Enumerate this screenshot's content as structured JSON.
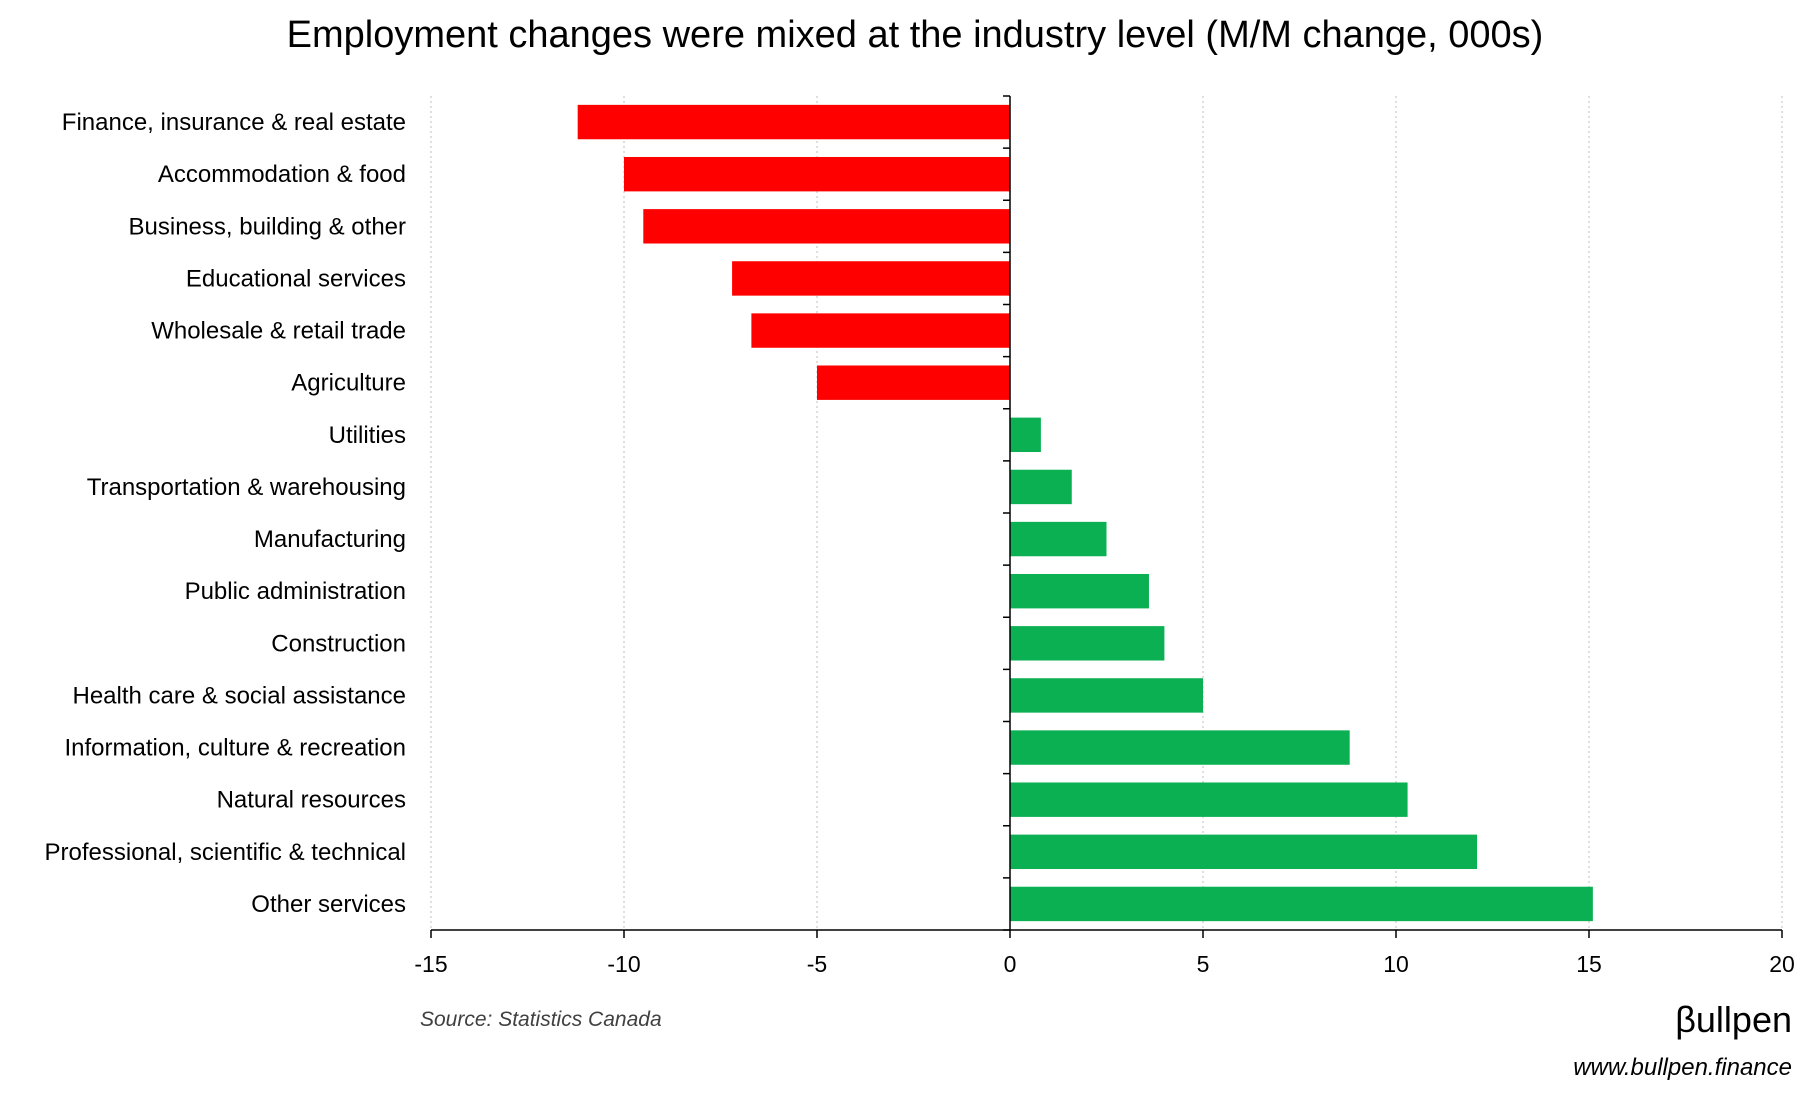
{
  "chart_data": {
    "type": "bar",
    "orientation": "horizontal",
    "title": "Employment changes were mixed at the industry level (M/M change, 000s)",
    "xlabel": "",
    "ylabel": "",
    "xlim": [
      -15,
      20
    ],
    "xticks": [
      -15,
      -10,
      -5,
      0,
      5,
      10,
      15,
      20
    ],
    "xtick_labels": [
      "-15",
      "-10",
      "-5",
      "0",
      "5",
      "10",
      "15",
      "20"
    ],
    "grid": "vertical dotted",
    "legend": "none",
    "categories": [
      "Finance, insurance & real estate",
      "Accommodation & food",
      "Business, building & other",
      "Educational services",
      "Wholesale & retail trade",
      "Agriculture",
      "Utilities",
      "Transportation & warehousing",
      "Manufacturing",
      "Public administration",
      "Construction",
      "Health care & social assistance",
      "Information, culture & recreation",
      "Natural resources",
      "Professional, scientific & technical",
      "Other services"
    ],
    "values": [
      -11.2,
      -10.0,
      -9.5,
      -7.2,
      -6.7,
      -5.0,
      0.8,
      1.6,
      2.5,
      3.6,
      4.0,
      5.0,
      8.8,
      10.3,
      12.1,
      15.1
    ],
    "colors": {
      "negative": "#ff0000",
      "positive": "#0ab052"
    }
  },
  "source": "Source: Statistics Canada",
  "brand": {
    "logo_text": "βullpen",
    "url": "www.bullpen.finance"
  }
}
